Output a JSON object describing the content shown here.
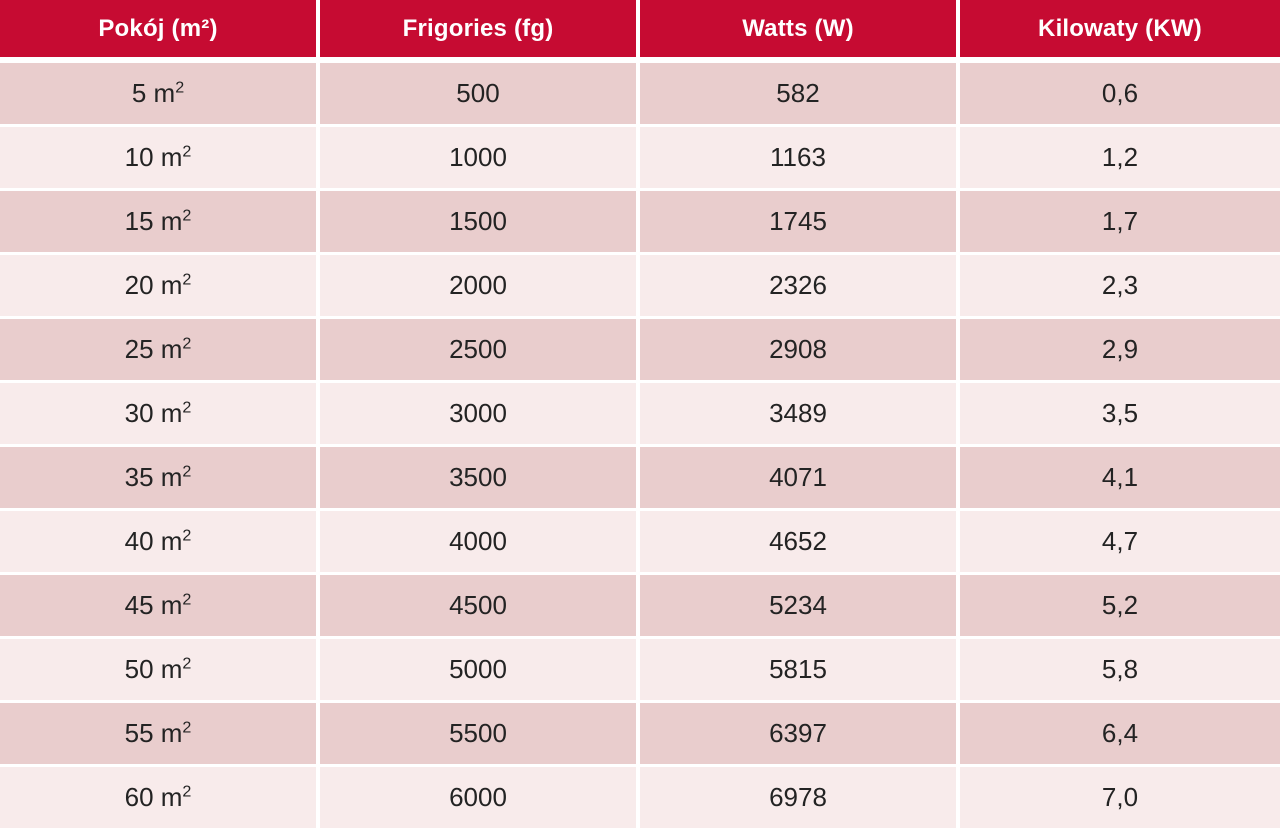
{
  "table": {
    "columns": [
      "Pokój (m²)",
      "Frigories (fg)",
      "Watts (W)",
      "Kilowaty (KW)"
    ],
    "rows": [
      {
        "room_base": "5 m",
        "room_sup": "2",
        "frigories": "500",
        "watts": "582",
        "kilowaty": "0,6"
      },
      {
        "room_base": "10 m",
        "room_sup": "2",
        "frigories": "1000",
        "watts": "1163",
        "kilowaty": "1,2"
      },
      {
        "room_base": "15 m",
        "room_sup": "2",
        "frigories": "1500",
        "watts": "1745",
        "kilowaty": "1,7"
      },
      {
        "room_base": "20 m",
        "room_sup": "2",
        "frigories": "2000",
        "watts": "2326",
        "kilowaty": "2,3"
      },
      {
        "room_base": "25 m",
        "room_sup": "2",
        "frigories": "2500",
        "watts": "2908",
        "kilowaty": "2,9"
      },
      {
        "room_base": "30 m",
        "room_sup": "2",
        "frigories": "3000",
        "watts": "3489",
        "kilowaty": "3,5"
      },
      {
        "room_base": "35 m",
        "room_sup": "2",
        "frigories": "3500",
        "watts": "4071",
        "kilowaty": "4,1"
      },
      {
        "room_base": "40 m",
        "room_sup": "2",
        "frigories": "4000",
        "watts": "4652",
        "kilowaty": "4,7"
      },
      {
        "room_base": "45 m",
        "room_sup": "2",
        "frigories": "4500",
        "watts": "5234",
        "kilowaty": "5,2"
      },
      {
        "room_base": "50 m",
        "room_sup": "2",
        "frigories": "5000",
        "watts": "5815",
        "kilowaty": "5,8"
      },
      {
        "room_base": "55 m",
        "room_sup": "2",
        "frigories": "5500",
        "watts": "6397",
        "kilowaty": "6,4"
      },
      {
        "room_base": "60 m",
        "room_sup": "2",
        "frigories": "6000",
        "watts": "6978",
        "kilowaty": "7,0"
      }
    ]
  },
  "colors": {
    "header_bg": "#c60b32",
    "header_text": "#ffffff",
    "row_odd_bg": "#e9cdcd",
    "row_even_bg": "#f8ebeb",
    "cell_text": "#232323",
    "divider": "#ffffff"
  },
  "chart_data": {
    "type": "table",
    "title": "",
    "columns": [
      "Pokój (m²)",
      "Frigories (fg)",
      "Watts (W)",
      "Kilowaty (KW)"
    ],
    "rows": [
      [
        "5 m²",
        500,
        582,
        "0,6"
      ],
      [
        "10 m²",
        1000,
        1163,
        "1,2"
      ],
      [
        "15 m²",
        1500,
        1745,
        "1,7"
      ],
      [
        "20 m²",
        2000,
        2326,
        "2,3"
      ],
      [
        "25 m²",
        2500,
        2908,
        "2,9"
      ],
      [
        "30 m²",
        3000,
        3489,
        "3,5"
      ],
      [
        "35 m²",
        3500,
        4071,
        "4,1"
      ],
      [
        "40 m²",
        4000,
        4652,
        "4,7"
      ],
      [
        "45 m²",
        4500,
        5234,
        "5,2"
      ],
      [
        "50 m²",
        5000,
        5815,
        "5,8"
      ],
      [
        "55 m²",
        5500,
        6397,
        "6,4"
      ],
      [
        "60 m²",
        6000,
        6978,
        "7,0"
      ]
    ]
  }
}
